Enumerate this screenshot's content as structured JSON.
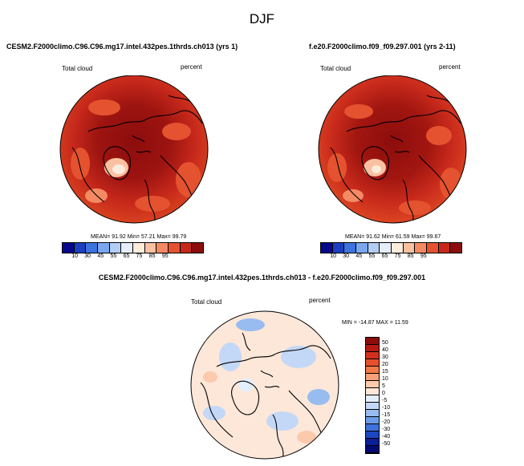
{
  "figure": {
    "season": "DJF"
  },
  "chart_data": [
    {
      "type": "heatmap",
      "projection": "north polar stereographic",
      "title": "CESM2.F2000climo.C96.C96.mg17.intel.432pes.1thrds.ch013 (yrs 1)",
      "variable_label": "Total cloud",
      "units_label": "percent",
      "stats": {
        "mean": "91.92",
        "min": "57.21",
        "max": "99.79"
      },
      "stats_text": "MEAN=  91.92  Min=  57.21  Max=  99.79",
      "levels": [
        10,
        30,
        45,
        55,
        65,
        75,
        85,
        95
      ],
      "level_labels": [
        "10",
        "30",
        "45",
        "55",
        "65",
        "75",
        "85",
        "95"
      ],
      "colors": [
        "#08088c",
        "#1a3fbf",
        "#3d73dd",
        "#7aa7ee",
        "#b4cdf5",
        "#e5eefb",
        "#fdebdc",
        "#f9c1a2",
        "#f48a63",
        "#e4522f",
        "#c6281b",
        "#8c0d0d"
      ]
    },
    {
      "type": "heatmap",
      "projection": "north polar stereographic",
      "title": "f.e20.F2000climo.f09_f09.297.001 (yrs 2-11)",
      "variable_label": "Total cloud",
      "units_label": "percent",
      "stats": {
        "mean": "91.62",
        "min": "61.59",
        "max": "99.67"
      },
      "stats_text": "MEAN=  91.62  Min=  61.59  Max=  99.67",
      "levels": [
        10,
        30,
        45,
        55,
        65,
        75,
        85,
        95
      ],
      "level_labels": [
        "10",
        "30",
        "45",
        "55",
        "65",
        "75",
        "85",
        "95"
      ],
      "colors": [
        "#08088c",
        "#1a3fbf",
        "#3d73dd",
        "#7aa7ee",
        "#b4cdf5",
        "#e5eefb",
        "#fdebdc",
        "#f9c1a2",
        "#f48a63",
        "#e4522f",
        "#c6281b",
        "#8c0d0d"
      ]
    },
    {
      "type": "heatmap",
      "projection": "north polar stereographic",
      "title": "CESM2.F2000climo.C96.C96.mg17.intel.432pes.1thrds.ch013 - f.e20.F2000climo.f09_f09.297.001",
      "variable_label": "Total cloud",
      "units_label": "percent",
      "stats": {
        "min": "-14.87",
        "max": "11.59"
      },
      "stats_text": "MIN = -14.87 MAX =  11.59",
      "levels": [
        50,
        40,
        30,
        20,
        15,
        10,
        5,
        0,
        -5,
        -10,
        -15,
        -20,
        -30,
        -40,
        -50
      ],
      "level_labels": [
        "50",
        "40",
        "30",
        "20",
        "15",
        "10",
        "5",
        "0",
        "-5",
        "-10",
        "-15",
        "-20",
        "-30",
        "-40",
        "-50"
      ],
      "colors": [
        "#8c0d0d",
        "#b51a14",
        "#d2301e",
        "#e5512d",
        "#f17a4a",
        "#f7a07a",
        "#fbcaad",
        "#fde7d9",
        "#e3eefc",
        "#c3d8f6",
        "#98bcf0",
        "#6c9be6",
        "#3f72da",
        "#1c47c2",
        "#0a1e96",
        "#050a72"
      ]
    }
  ]
}
